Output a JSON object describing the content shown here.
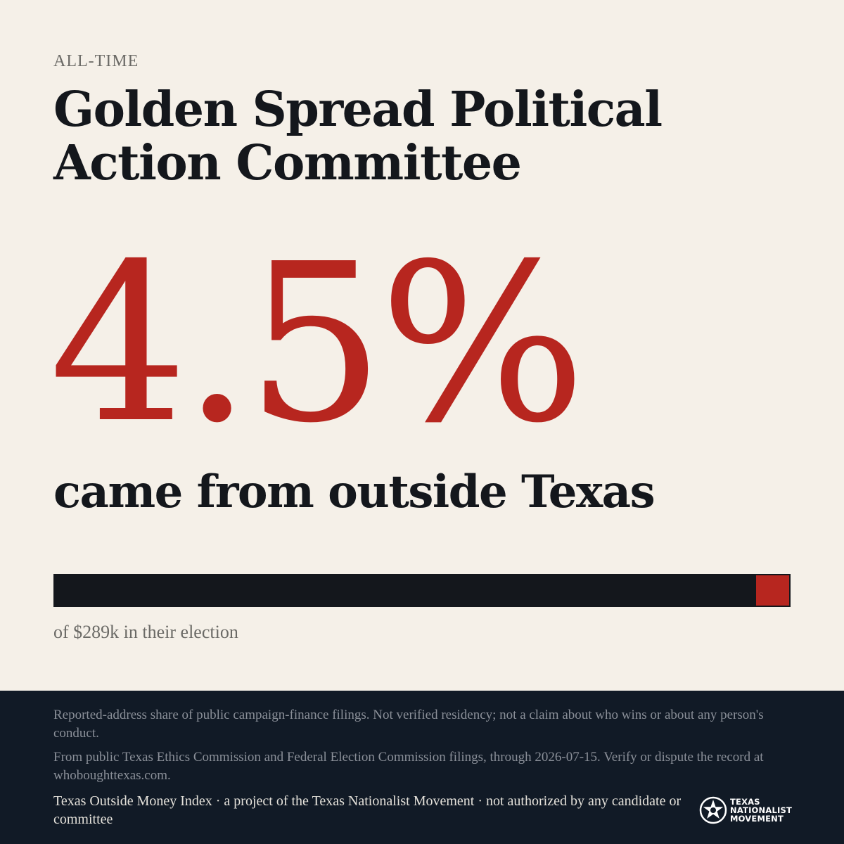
{
  "header": {
    "eyebrow": "ALL-TIME",
    "title": "Golden Spread Political Action Committee"
  },
  "stat": {
    "figure": "4.5%",
    "share_percent": 4.5,
    "subhead": "came from outside Texas"
  },
  "bar": {
    "caption": "of $289k in their election"
  },
  "footer": {
    "disclaimer_1": "Reported-address share of public campaign-finance filings. Not verified residency; not a claim about who wins or about any person's conduct.",
    "disclaimer_2": "From public Texas Ethics Commission and Federal Election Commission filings, through 2026-07-15. Verify or dispute the record at whoboughttexas.com.",
    "credit": "Texas Outside Money Index · a project of the Texas Nationalist Movement · not authorized by any candidate or committee",
    "logo_line_1": "TEXAS",
    "logo_line_2": "NATIONALIST",
    "logo_line_3": "MOVEMENT"
  },
  "colors": {
    "background": "#f5f0e8",
    "accent": "#b7261f",
    "ink": "#14171c",
    "footer": "#111a26"
  },
  "icons": {
    "logo": "star-in-circle-icon"
  }
}
